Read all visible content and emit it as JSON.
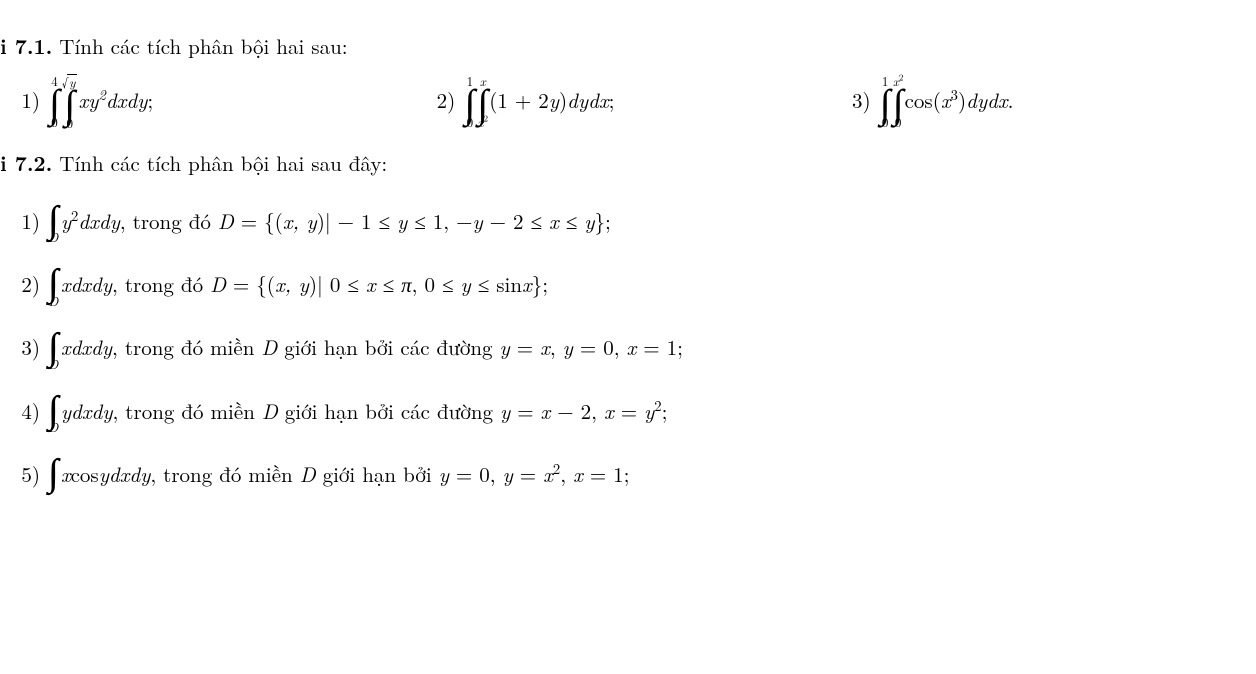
{
  "heading71_prefix": "i 7.1.",
  "heading71_text": " Tính các tích phân bội hai sau:",
  "heading72_prefix": "i 7.2.",
  "heading72_text": " Tính các tích phân bội hai sau đây:",
  "p71": {
    "n1": "1)",
    "i1_outer_low": "0",
    "i1_outer_up": "4",
    "i1_inner_low": "0",
    "i1_inner_up_radicand": "y",
    "i1_body": "xy",
    "i1_body_sup": "2",
    "i1_diff": "dxdy",
    "n2": "2)",
    "i2_outer_low": "0",
    "i2_outer_up": "1",
    "i2_inner_low_base": "x",
    "i2_inner_low_sup": "2",
    "i2_inner_up": "x",
    "i2_body": "(1 + 2",
    "i2_body2": "y",
    "i2_body3": ")",
    "i2_diff": "dydx",
    "n3": "3)",
    "i3_outer_low": "0",
    "i3_outer_up": "1",
    "i3_inner_low": "0",
    "i3_inner_up_base": "x",
    "i3_inner_up_sup": "2",
    "i3_body_fn": "cos(",
    "i3_body_var": "x",
    "i3_body_sup": "3",
    "i3_body_close": ")",
    "i3_diff": "dydx"
  },
  "p72": {
    "n1": "1)",
    "sub1": "D",
    "b1a": "y",
    "b1a_sup": "2",
    "b1b": "dxdy",
    "t1": ", trong đó ",
    "t1D": "D",
    "t1eq": " = {(",
    "t1xy": "x, y",
    "t1bar": ")|  − 1 ≤ ",
    "t1y": "y",
    "t1r": " ≤ 1,  −",
    "t1y2": "y",
    "t1m": " − 2 ≤ ",
    "t1x": "x",
    "t1le": " ≤ ",
    "t1y3": "y",
    "t1end": "};",
    "n2": "2)",
    "sub2": "D",
    "b2a": "x",
    "b2b": "dxdy",
    "t2": ", trong đó ",
    "t2D": "D",
    "t2eq": " = {(",
    "t2xy": "x, y",
    "t2bar": ")| 0 ≤ ",
    "t2x": "x",
    "t2r": " ≤ ",
    "t2pi": "π",
    "t2c": ",  0 ≤ ",
    "t2y": "y",
    "t2le": " ≤ sin",
    "t2x2": "x",
    "t2end": "};",
    "n3": "3)",
    "sub3": "D",
    "b3a": "x",
    "b3b": "dxdy",
    "t3": ", trong đó miền ",
    "t3D": "D",
    "t3m": " giới hạn bởi các đường ",
    "t3y": "y",
    "t3eq": " = ",
    "t3x": "x",
    "t3c": ",  ",
    "t3y2": "y",
    "t3z": " = 0,  ",
    "t3x2": "x",
    "t3one": " = 1;",
    "n4": "4)",
    "sub4": "D",
    "b4a": "y",
    "b4b": "dxdy",
    "t4": ", trong đó miền ",
    "t4D": "D",
    "t4m": " giới hạn bởi các đường ",
    "t4y": "y",
    "t4eq": " = ",
    "t4x": "x",
    "t4minus": " − 2,  ",
    "t4x2": "x",
    "t4eq2": " = ",
    "t4y2": "y",
    "t4sup": "2",
    "t4end": ";",
    "n5": "5)",
    "sub5": "D",
    "b5a": "x",
    "b5fn": "cos",
    "b5y": "y",
    "b5b": "dxdy",
    "t5": ", trong đó miền ",
    "t5D": "D",
    "t5m": " giới hạn bởi ",
    "t5y": "y",
    "t5z": " = 0,  ",
    "t5y2": "y",
    "t5eq": " = ",
    "t5x": "x",
    "t5sup": "2",
    "t5c": ",  ",
    "t5x2": "x",
    "t5one": " = 1;"
  }
}
